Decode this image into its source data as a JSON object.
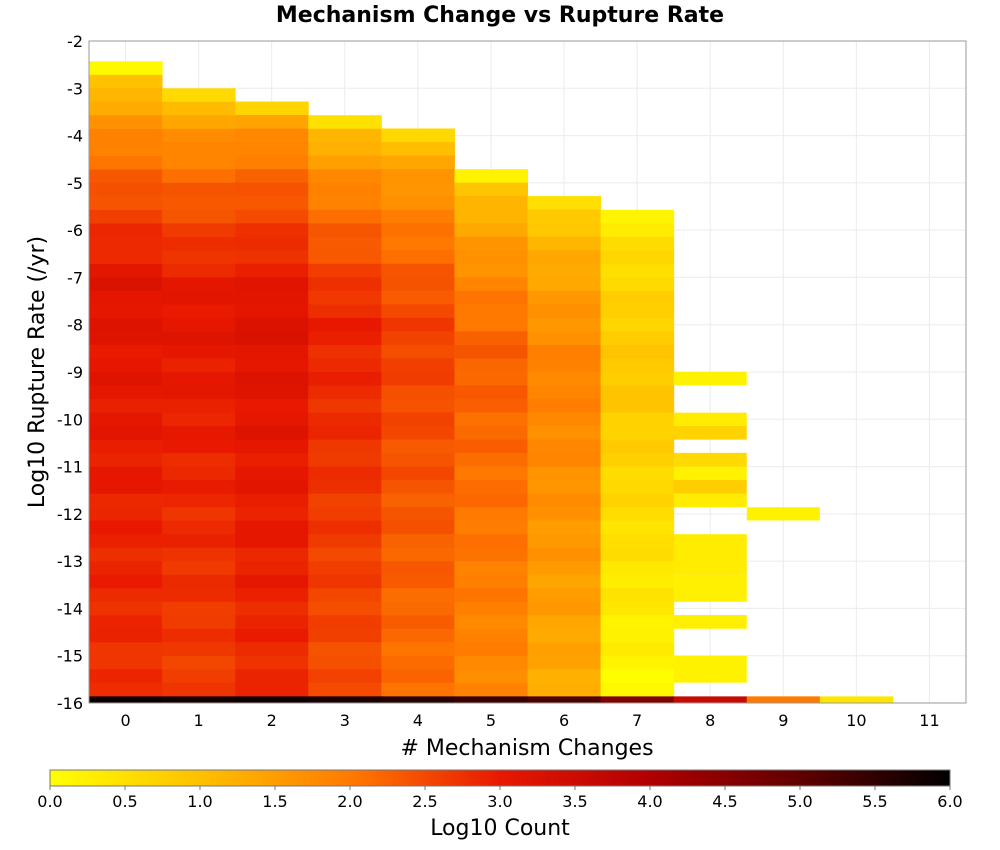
{
  "chart_data": {
    "type": "heatmap",
    "title": "Mechanism Change vs Rupture Rate",
    "xlabel": "# Mechanism Changes",
    "ylabel": "Log10 Rupture Rate (/yr)",
    "x_categories": [
      0,
      1,
      2,
      3,
      4,
      5,
      6,
      7,
      8,
      9,
      10,
      11
    ],
    "x_ticks": [
      "0",
      "1",
      "2",
      "3",
      "4",
      "5",
      "6",
      "7",
      "8",
      "9",
      "10",
      "11"
    ],
    "y_ticks": [
      "-2",
      "-3",
      "-4",
      "-5",
      "-6",
      "-7",
      "-8",
      "-9",
      "-10",
      "-11",
      "-12",
      "-13",
      "-14",
      "-15",
      "-16"
    ],
    "ylim": [
      -16,
      -2
    ],
    "y_bin_width": 0.285,
    "grid": true,
    "colorbar": {
      "label": "Log10 Count",
      "range": [
        0,
        6
      ],
      "ticks": [
        "0.0",
        "0.5",
        "1.0",
        "1.5",
        "2.0",
        "2.5",
        "3.0",
        "3.5",
        "4.0",
        "4.5",
        "5.0",
        "5.5",
        "6.0"
      ],
      "stops": [
        {
          "v": 0.0,
          "color": "#ffff00"
        },
        {
          "v": 1.0,
          "color": "#ffc000"
        },
        {
          "v": 2.0,
          "color": "#ff7a00"
        },
        {
          "v": 3.0,
          "color": "#e81800"
        },
        {
          "v": 4.0,
          "color": "#b00000"
        },
        {
          "v": 5.0,
          "color": "#600000"
        },
        {
          "v": 6.0,
          "color": "#000000"
        }
      ]
    },
    "columns": [
      {
        "x": 0,
        "ymin": -15.86,
        "ymax": -2.43,
        "v_top": 0.1,
        "v_peak": 3.15,
        "v_bottom": 2.75
      },
      {
        "x": 1,
        "ymin": -15.86,
        "ymax": -3.0,
        "v_top": 0.5,
        "v_peak": 3.1,
        "v_bottom": 2.6
      },
      {
        "x": 2,
        "ymin": -15.86,
        "ymax": -3.28,
        "v_top": 0.8,
        "v_peak": 3.2,
        "v_bottom": 2.8
      },
      {
        "x": 3,
        "ymin": -15.86,
        "ymax": -3.57,
        "v_top": 0.4,
        "v_peak": 2.9,
        "v_bottom": 2.45
      },
      {
        "x": 4,
        "ymin": -15.86,
        "ymax": -3.85,
        "v_top": 0.6,
        "v_peak": 2.6,
        "v_bottom": 2.1
      },
      {
        "x": 5,
        "ymin": -15.86,
        "ymax": -4.71,
        "v_top": 0.3,
        "v_peak": 2.3,
        "v_bottom": 1.8
      },
      {
        "x": 6,
        "ymin": -15.86,
        "ymax": -5.28,
        "v_top": 0.4,
        "v_peak": 1.9,
        "v_bottom": 1.3
      },
      {
        "x": 7,
        "ymin": -15.86,
        "ymax": -5.57,
        "v_top": 0.2,
        "v_peak": 0.9,
        "v_bottom": 0.1
      }
    ],
    "sparse_cells": [
      {
        "x": 8,
        "y0": -9.28,
        "y1": -9.0,
        "v": 0.2
      },
      {
        "x": 8,
        "y0": -10.14,
        "y1": -9.86,
        "v": 0.3
      },
      {
        "x": 8,
        "y0": -10.43,
        "y1": -10.14,
        "v": 0.7
      },
      {
        "x": 8,
        "y0": -11.0,
        "y1": -10.71,
        "v": 0.6
      },
      {
        "x": 8,
        "y0": -11.28,
        "y1": -11.0,
        "v": 0.2
      },
      {
        "x": 8,
        "y0": -11.57,
        "y1": -11.28,
        "v": 0.8
      },
      {
        "x": 8,
        "y0": -11.86,
        "y1": -11.57,
        "v": 0.3
      },
      {
        "x": 9,
        "y0": -12.14,
        "y1": -11.86,
        "v": 0.2
      },
      {
        "x": 8,
        "y0": -13.28,
        "y1": -12.43,
        "v": 0.3
      },
      {
        "x": 8,
        "y0": -13.86,
        "y1": -13.28,
        "v": 0.25
      },
      {
        "x": 8,
        "y0": -14.43,
        "y1": -14.14,
        "v": 0.25
      },
      {
        "x": 8,
        "y0": -15.57,
        "y1": -15.0,
        "v": 0.2
      }
    ],
    "bottom_row": {
      "y0": -16.0,
      "y1": -15.86,
      "values": [
        5.9,
        5.8,
        5.85,
        5.75,
        5.6,
        5.4,
        5.2,
        4.6,
        3.6,
        2.0,
        0.4
      ]
    }
  }
}
